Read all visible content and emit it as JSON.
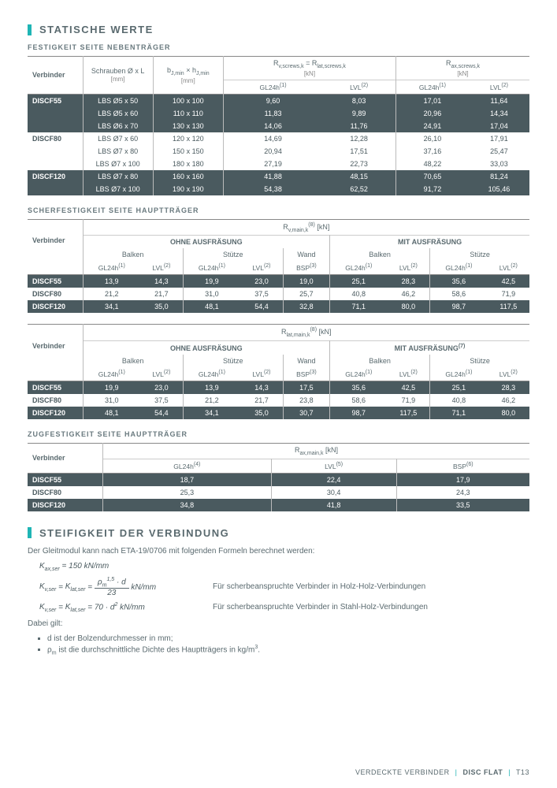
{
  "section1_title": "STATISCHE WERTE",
  "sub1": "FESTIGKEIT SEITE NEBENTRÄGER",
  "t1": {
    "h_verbinder": "Verbinder",
    "h_schrauben": "Schrauben Ø x L",
    "h_schrauben_u": "[mm]",
    "h_bj": "bJ,min × hJ,min",
    "h_bj_u": "[mm]",
    "h_rv": "Rv,screws,k = Rlat,screws,k",
    "h_rv_u": "[kN]",
    "h_rax": "Rax,screws,k",
    "h_rax_u": "[kN]",
    "h_gl24h": "GL24h",
    "h_lvl": "LVL",
    "sup1": "(1)",
    "sup2": "(2)",
    "rows": [
      {
        "v": "DISCF55",
        "s": "LBS Ø5 x 50",
        "b": "100 x 100",
        "rv1": "9,60",
        "rv2": "8,03",
        "ra1": "17,01",
        "ra2": "11,64",
        "cls": "row-dark"
      },
      {
        "v": "",
        "s": "LBS Ø5 x 60",
        "b": "110 x 110",
        "rv1": "11,83",
        "rv2": "9,89",
        "ra1": "20,96",
        "ra2": "14,34",
        "cls": "row-dark"
      },
      {
        "v": "",
        "s": "LBS Ø6 x 70",
        "b": "130 x 130",
        "rv1": "14,06",
        "rv2": "11,76",
        "ra1": "24,91",
        "ra2": "17,04",
        "cls": "row-dark"
      },
      {
        "v": "DISCF80",
        "s": "LBS Ø7 x 60",
        "b": "120 x 120",
        "rv1": "14,69",
        "rv2": "12,28",
        "ra1": "26,10",
        "ra2": "17,91",
        "cls": "row-light"
      },
      {
        "v": "",
        "s": "LBS Ø7 x 80",
        "b": "150 x 150",
        "rv1": "20,94",
        "rv2": "17,51",
        "ra1": "37,16",
        "ra2": "25,47",
        "cls": "row-light"
      },
      {
        "v": "",
        "s": "LBS Ø7 x 100",
        "b": "180 x 180",
        "rv1": "27,19",
        "rv2": "22,73",
        "ra1": "48,22",
        "ra2": "33,03",
        "cls": "row-light"
      },
      {
        "v": "DISCF120",
        "s": "LBS Ø7 x 80",
        "b": "160 x 160",
        "rv1": "41,88",
        "rv2": "48,15",
        "ra1": "70,65",
        "ra2": "81,24",
        "cls": "row-dark"
      },
      {
        "v": "",
        "s": "LBS Ø7 x 100",
        "b": "190 x 190",
        "rv1": "54,38",
        "rv2": "62,52",
        "ra1": "91,72",
        "ra2": "105,46",
        "cls": "row-dark"
      }
    ]
  },
  "sub2": "SCHERFESTIGKEIT SEITE HAUPTTRÄGER",
  "t2": {
    "h_verbinder": "Verbinder",
    "h_rv": "Rv,main,k",
    "h_rv_sup": "(8)",
    "h_rv_u": " [kN]",
    "h_ohne": "OHNE AUSFRÄSUNG",
    "h_mit": "MIT AUSFRÄSUNG",
    "h_balken": "Balken",
    "h_stuetze": "Stütze",
    "h_wand": "Wand",
    "h_gl24h": "GL24h",
    "h_lvl": "LVL",
    "h_bsp": "BSP",
    "sup1": "(1)",
    "sup2": "(2)",
    "sup3": "(3)",
    "rows": [
      {
        "v": "DISCF55",
        "c": [
          "13,9",
          "14,3",
          "19,9",
          "23,0",
          "19,0",
          "25,1",
          "28,3",
          "35,6",
          "42,5"
        ],
        "cls": "row-dark"
      },
      {
        "v": "DISCF80",
        "c": [
          "21,2",
          "21,7",
          "31,0",
          "37,5",
          "25,7",
          "40,8",
          "46,2",
          "58,6",
          "71,9"
        ],
        "cls": "row-light"
      },
      {
        "v": "DISCF120",
        "c": [
          "34,1",
          "35,0",
          "48,1",
          "54,4",
          "32,8",
          "71,1",
          "80,0",
          "98,7",
          "117,5"
        ],
        "cls": "row-dark"
      }
    ]
  },
  "t3": {
    "h_verbinder": "Verbinder",
    "h_rlat": "Rlat,main,k",
    "h_rlat_sup": "(8)",
    "h_rlat_u": " [kN]",
    "h_ohne": "OHNE AUSFRÄSUNG",
    "h_mit": "MIT AUSFRÄSUNG",
    "h_mit_sup": "(7)",
    "h_balken": "Balken",
    "h_stuetze": "Stütze",
    "h_wand": "Wand",
    "h_gl24h": "GL24h",
    "h_lvl": "LVL",
    "h_bsp": "BSP",
    "sup1": "(1)",
    "sup2": "(2)",
    "sup3": "(3)",
    "rows": [
      {
        "v": "DISCF55",
        "c": [
          "19,9",
          "23,0",
          "13,9",
          "14,3",
          "17,5",
          "35,6",
          "42,5",
          "25,1",
          "28,3"
        ],
        "cls": "row-dark"
      },
      {
        "v": "DISCF80",
        "c": [
          "31,0",
          "37,5",
          "21,2",
          "21,7",
          "23,8",
          "58,6",
          "71,9",
          "40,8",
          "46,2"
        ],
        "cls": "row-light"
      },
      {
        "v": "DISCF120",
        "c": [
          "48,1",
          "54,4",
          "34,1",
          "35,0",
          "30,7",
          "98,7",
          "117,5",
          "71,1",
          "80,0"
        ],
        "cls": "row-dark"
      }
    ]
  },
  "sub3": "ZUGFESTIGKEIT SEITE HAUPTTRÄGER",
  "t4": {
    "h_verbinder": "Verbinder",
    "h_rax": "Rax,main,k",
    "h_rax_u": " [kN]",
    "h_gl24h": "GL24h",
    "h_lvl": "LVL",
    "h_bsp": "BSP",
    "sup4": "(4)",
    "sup5": "(5)",
    "sup6": "(6)",
    "rows": [
      {
        "v": "DISCF55",
        "c": [
          "18,7",
          "22,4",
          "17,9"
        ],
        "cls": "row-dark"
      },
      {
        "v": "DISCF80",
        "c": [
          "25,3",
          "30,4",
          "24,3"
        ],
        "cls": "row-light"
      },
      {
        "v": "DISCF120",
        "c": [
          "34,8",
          "41,8",
          "33,5"
        ],
        "cls": "row-dark"
      }
    ]
  },
  "section2_title": "STEIFIGKEIT DER VERBINDUNG",
  "intro": "Der Gleitmodul kann nach ETA-19/0706 mit folgenden Formeln berechnet werden:",
  "f1": "Kax,ser = 150 kN/mm",
  "f2": "Kv,ser = Klat,ser = (ρm^1,5 · d) / 23  kN/mm",
  "f2_desc": "Für scherbeanspruchte Verbinder in Holz-Holz-Verbindungen",
  "f3": "Kv,ser = Klat,ser = 70 · d²  kN/mm",
  "f3_desc": "Für scherbeanspruchte Verbinder in Stahl-Holz-Verbindungen",
  "dabei": "Dabei gilt:",
  "li1": "d ist der Bolzendurchmesser in mm;",
  "li2": "ρm ist die durchschnittliche Dichte des Hauptträgers in kg/m³.",
  "footer_left": "VERDECKTE VERBINDER",
  "footer_brand": "DISC FLAT",
  "footer_page": "T13"
}
